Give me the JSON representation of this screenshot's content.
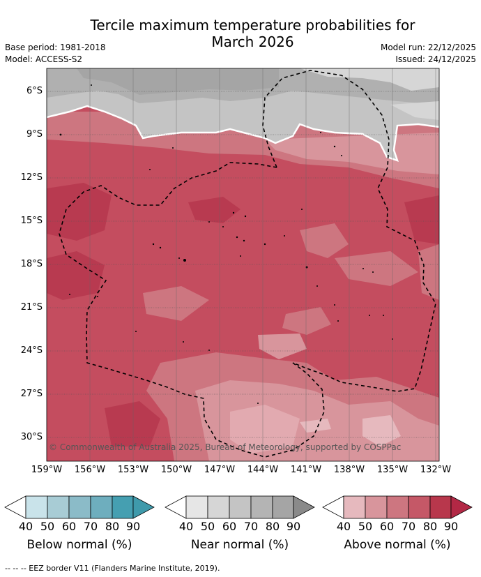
{
  "title": {
    "line1": "Tercile maximum temperature probabilities for",
    "line2": "March 2026"
  },
  "meta": {
    "base_period": "Base period: 1981-2018",
    "model": "Model: ACCESS-S2",
    "model_run": "Model run: 22/12/2025",
    "issued": "Issued: 24/12/2025"
  },
  "map": {
    "lon_range": [
      -159,
      -131
    ],
    "lat_range": [
      -5,
      -32
    ],
    "y_ticks": [
      "6°S",
      "9°S",
      "12°S",
      "15°S",
      "18°S",
      "21°S",
      "24°S",
      "27°S",
      "30°S"
    ],
    "x_ticks": [
      "159°W",
      "156°W",
      "153°W",
      "150°W",
      "147°W",
      "144°W",
      "141°W",
      "138°W",
      "135°W",
      "132°W"
    ],
    "grid": true,
    "copyright": "© Commonwealth of Australia 2025, Bureau of Meteorology, supported by COSPPac"
  },
  "colorbars": [
    {
      "label": "Below normal (%)",
      "ticks": [
        "40",
        "50",
        "60",
        "70",
        "80",
        "90"
      ],
      "colors": [
        "#c9e3ea",
        "#a8ccd5",
        "#8bbbc8",
        "#6eaebe",
        "#459fb1",
        "#3f9aab"
      ]
    },
    {
      "label": "Near normal (%)",
      "ticks": [
        "40",
        "50",
        "60",
        "70",
        "80",
        "90"
      ],
      "colors": [
        "#e6e6e6",
        "#d6d6d6",
        "#c4c4c4",
        "#b4b4b4",
        "#a5a5a5",
        "#8a8a8a"
      ]
    },
    {
      "label": "Above normal (%)",
      "ticks": [
        "40",
        "50",
        "60",
        "70",
        "80",
        "90"
      ],
      "colors": [
        "#e6b9be",
        "#d8959c",
        "#cd7680",
        "#c55867",
        "#b8374c",
        "#b22845"
      ]
    }
  ],
  "footnote": "-- -- -- EEZ border V11 (Flanders Marine Institute, 2019)."
}
